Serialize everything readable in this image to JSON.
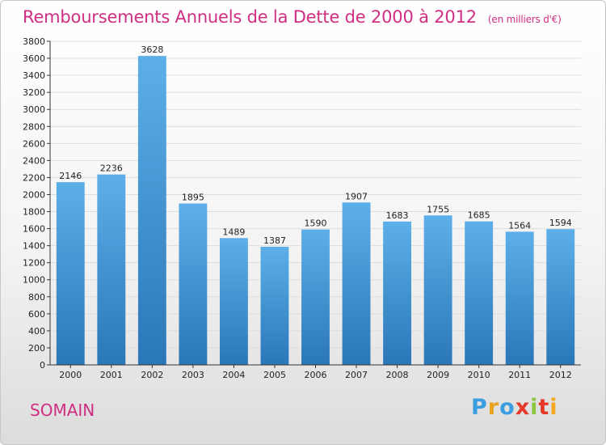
{
  "title": "Remboursements Annuels de la Dette de 2000 à 2012",
  "unit": "(en milliers d'€)",
  "city": "SOMAIN",
  "logo": {
    "letters": [
      "P",
      "r",
      "o",
      "x",
      "i",
      "t",
      "i"
    ],
    "colors": [
      "#3b9ee0",
      "#e8a21c",
      "#3b9ee0",
      "#e53a2a",
      "#8cc63f",
      "#e53a2a",
      "#f3a81f"
    ]
  },
  "colors": {
    "bar_top": "#5dafe9",
    "bar_bottom": "#2a77b8",
    "grid": "#dddddd",
    "axis": "#333333",
    "title": "#d02e82"
  },
  "chart_data": {
    "type": "bar",
    "title": "Remboursements Annuels de la Dette de 2000 à 2012",
    "xlabel": "",
    "ylabel": "",
    "categories": [
      "2000",
      "2001",
      "2002",
      "2003",
      "2004",
      "2005",
      "2006",
      "2007",
      "2008",
      "2009",
      "2010",
      "2011",
      "2012"
    ],
    "values": [
      2146,
      2236,
      3628,
      1895,
      1489,
      1387,
      1590,
      1907,
      1683,
      1755,
      1685,
      1564,
      1594
    ],
    "ylim": [
      0,
      3800
    ],
    "yticks": [
      0,
      200,
      400,
      600,
      800,
      1000,
      1200,
      1400,
      1600,
      1800,
      2000,
      2200,
      2400,
      2600,
      2800,
      3000,
      3200,
      3400,
      3600,
      3800
    ],
    "grid": true,
    "data_labels": true
  }
}
